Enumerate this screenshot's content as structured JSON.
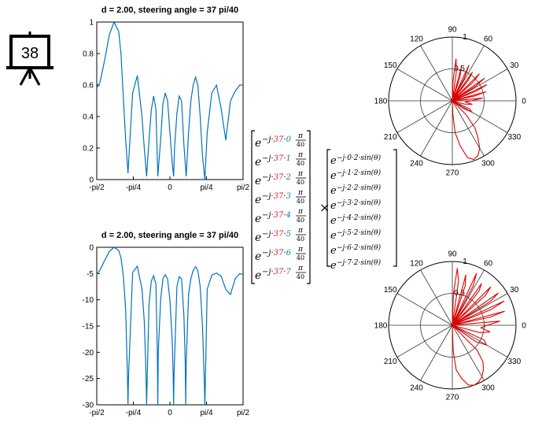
{
  "slide_number": "38",
  "icon_name": "presentation-board-icon",
  "colors": {
    "line_blue": "#0072BD",
    "polar_red": "#E00000",
    "num_red": "#E02020",
    "num_blue": "#1F77B4"
  },
  "chart_data": [
    {
      "type": "line",
      "title": "d = 2.00, steering angle  = 37 pi/40",
      "xlabel": "",
      "ylabel": "",
      "x_ticks": [
        "-pi/2",
        "-pi/4",
        "0",
        "pi/4",
        "pi/2"
      ],
      "y_ticks": [
        "0",
        "0.2",
        "0.4",
        "0.6",
        "0.8",
        "1"
      ],
      "xlim": [
        -1.5708,
        1.5708
      ],
      "ylim": [
        0,
        1
      ],
      "grid": false,
      "series": [
        {
          "x": [
            -1.5708,
            -1.5,
            -1.4,
            -1.3,
            -1.2,
            -1.1,
            -1.05,
            -1.0,
            -0.95,
            -0.9,
            -0.8,
            -0.7,
            -0.6,
            -0.55,
            -0.5,
            -0.45,
            -0.4,
            -0.35,
            -0.3,
            -0.26,
            -0.2,
            -0.15,
            -0.1,
            -0.05,
            0.0,
            0.05,
            0.08,
            0.1,
            0.15,
            0.2,
            0.25,
            0.3,
            0.35,
            0.4,
            0.45,
            0.5,
            0.55,
            0.6,
            0.65,
            0.7,
            0.75,
            0.8,
            0.9,
            1.0,
            1.1,
            1.2,
            1.3,
            1.4,
            1.5,
            1.5708
          ],
          "y": [
            0.58,
            0.62,
            0.76,
            0.92,
            1.0,
            0.94,
            0.8,
            0.52,
            0.25,
            0.04,
            0.55,
            0.66,
            0.4,
            0.2,
            0.02,
            0.25,
            0.44,
            0.53,
            0.45,
            0.02,
            0.25,
            0.48,
            0.55,
            0.5,
            0.3,
            0.1,
            0.02,
            0.2,
            0.42,
            0.53,
            0.5,
            0.22,
            0.02,
            0.3,
            0.5,
            0.6,
            0.65,
            0.6,
            0.4,
            0.15,
            0.0,
            0.3,
            0.55,
            0.6,
            0.45,
            0.25,
            0.5,
            0.56,
            0.6,
            0.6
          ]
        }
      ]
    },
    {
      "type": "line",
      "title": "d = 2.00, steering angle  = 37 pi/40",
      "xlabel": "",
      "ylabel": "",
      "x_ticks": [
        "-pi/2",
        "-pi/4",
        "0",
        "pi/4",
        "pi/2"
      ],
      "y_ticks": [
        "0",
        "-5",
        "-10",
        "-15",
        "-20",
        "-25",
        "-30"
      ],
      "xlim": [
        -1.5708,
        1.5708
      ],
      "ylim": [
        -30,
        0
      ],
      "grid": false,
      "series": [
        {
          "x": [
            -1.5708,
            -1.5,
            -1.4,
            -1.3,
            -1.2,
            -1.1,
            -1.05,
            -1.0,
            -0.95,
            -0.91,
            -0.9,
            -0.89,
            -0.8,
            -0.7,
            -0.6,
            -0.55,
            -0.52,
            -0.5,
            -0.48,
            -0.45,
            -0.4,
            -0.35,
            -0.3,
            -0.27,
            -0.26,
            -0.25,
            -0.2,
            -0.15,
            -0.1,
            -0.05,
            0.0,
            0.05,
            0.07,
            0.08,
            0.09,
            0.15,
            0.2,
            0.25,
            0.3,
            0.33,
            0.34,
            0.35,
            0.4,
            0.45,
            0.5,
            0.55,
            0.6,
            0.65,
            0.7,
            0.74,
            0.75,
            0.76,
            0.8,
            0.9,
            1.0,
            1.1,
            1.2,
            1.3,
            1.4,
            1.5,
            1.5708
          ],
          "y": [
            -5.2,
            -4.3,
            -2.5,
            -0.8,
            0,
            -0.6,
            -2,
            -5.5,
            -12,
            -25,
            -30,
            -25,
            -4.8,
            -3.6,
            -8,
            -14,
            -22,
            -30,
            -22,
            -11,
            -6.5,
            -5.4,
            -7,
            -20,
            -30,
            -20,
            -10,
            -6,
            -5.2,
            -6,
            -10,
            -18,
            -24,
            -30,
            -24,
            -7.5,
            -5.6,
            -6,
            -13,
            -22,
            -30,
            -22,
            -9,
            -6,
            -4.4,
            -3.7,
            -4.4,
            -7.5,
            -15,
            -26,
            -30,
            -26,
            -8,
            -5.3,
            -4.9,
            -5.5,
            -8,
            -9,
            -6,
            -5,
            -5.2
          ]
        }
      ]
    },
    {
      "type": "polar",
      "r_ticks": [
        "0.5",
        "1"
      ],
      "theta_ticks": [
        "0",
        "30",
        "60",
        "90",
        "120",
        "150",
        "180",
        "210",
        "240",
        "270",
        "300",
        "330"
      ],
      "rlim": [
        0,
        1
      ],
      "series": [
        {
          "theta_deg": [
            0,
            5,
            8,
            12,
            15,
            18,
            22,
            25,
            28,
            32,
            35,
            38,
            42,
            45,
            48,
            52,
            55,
            58,
            62,
            65,
            68,
            72,
            75,
            78,
            82,
            85,
            88,
            90,
            270,
            272,
            275,
            280,
            285,
            290,
            295,
            300,
            305,
            310,
            315,
            320,
            325,
            330,
            335,
            340,
            345,
            350,
            355,
            360
          ],
          "r": [
            0.3,
            0.48,
            0.0,
            0.35,
            0.55,
            0.0,
            0.4,
            0.6,
            0.0,
            0.42,
            0.62,
            0.0,
            0.45,
            0.6,
            0.0,
            0.4,
            0.55,
            0.0,
            0.4,
            0.62,
            0.0,
            0.38,
            0.55,
            0.0,
            0.45,
            0.66,
            0.3,
            0.0,
            0.0,
            0.2,
            0.5,
            0.72,
            0.92,
            0.98,
            0.95,
            0.86,
            0.7,
            0.55,
            0.3,
            0.0,
            0.2,
            0.35,
            0.3,
            0.0,
            0.2,
            0.32,
            0.2,
            0.3
          ]
        }
      ]
    },
    {
      "type": "polar",
      "r_ticks": [
        "0.5",
        "1"
      ],
      "theta_ticks": [
        "0",
        "30",
        "60",
        "90",
        "120",
        "150",
        "180",
        "210",
        "240",
        "270",
        "300",
        "330"
      ],
      "rlim": [
        0,
        1
      ],
      "series": [
        {
          "theta_deg": [
            0,
            5,
            8,
            12,
            15,
            18,
            22,
            25,
            28,
            32,
            35,
            38,
            42,
            45,
            48,
            52,
            55,
            58,
            62,
            65,
            68,
            72,
            75,
            78,
            82,
            85,
            88,
            90,
            270,
            272,
            275,
            280,
            285,
            290,
            295,
            300,
            305,
            310,
            315,
            320,
            325,
            330,
            335,
            340,
            345,
            350,
            355,
            360
          ],
          "r": [
            0.55,
            0.75,
            0.0,
            0.6,
            0.85,
            0.0,
            0.65,
            0.9,
            0.0,
            0.7,
            0.88,
            0.0,
            0.7,
            0.85,
            0.0,
            0.68,
            0.8,
            0.0,
            0.7,
            0.9,
            0.0,
            0.65,
            0.82,
            0.0,
            0.7,
            0.9,
            0.5,
            0.0,
            0.0,
            0.4,
            0.7,
            0.85,
            0.97,
            1.0,
            0.98,
            0.93,
            0.85,
            0.75,
            0.55,
            0.0,
            0.45,
            0.62,
            0.55,
            0.0,
            0.45,
            0.6,
            0.45,
            0.55
          ]
        }
      ]
    }
  ],
  "equation": {
    "steering_column": {
      "base": "e",
      "prefix": "−j·",
      "coef": "37",
      "dot": "·",
      "indices": [
        "0",
        "1",
        "2",
        "3",
        "4",
        "5",
        "6",
        "7"
      ],
      "frac_num": "π",
      "frac_den": "40"
    },
    "operator": "×",
    "array_column": {
      "base": "e",
      "entries": [
        "−j·0·2·sin(θ)",
        "−j·1·2·sin(θ)",
        "−j·2·2·sin(θ)",
        "−j·3·2·sin(θ)",
        "−j·4·2·sin(θ)",
        "−j·5·2·sin(θ)",
        "−j·6·2·sin(θ)",
        "−j·7·2·sin(θ)"
      ]
    }
  }
}
